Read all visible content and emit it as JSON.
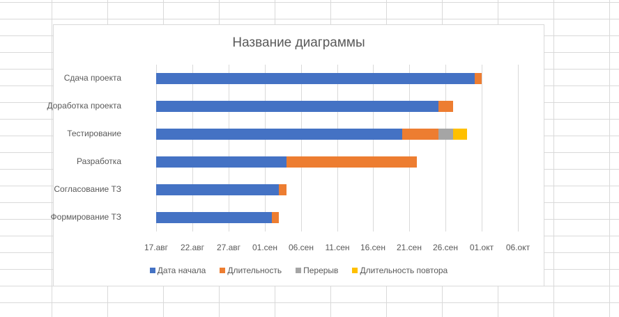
{
  "chart_data": {
    "type": "bar",
    "orientation": "horizontal",
    "stacked": true,
    "title": "Название диаграммы",
    "xlabel": "",
    "ylabel": "",
    "categories": [
      "Сдача проекта",
      "Доработка проекта",
      "Тестирование",
      "Разработка",
      "Согласование ТЗ",
      "Формирование ТЗ"
    ],
    "series": [
      {
        "name": "Дата начала",
        "color": "#4472c4",
        "values_days_from_17aug": [
          44,
          39,
          34,
          18,
          17,
          16
        ],
        "values": [
          "30.сен",
          "25.сен",
          "20.сен",
          "04.сен",
          "03.сен",
          "02.сен"
        ]
      },
      {
        "name": "Длительность",
        "color": "#ed7d31",
        "values": [
          1,
          2,
          5,
          18,
          1,
          1
        ]
      },
      {
        "name": "Перерыв",
        "color": "#a5a5a5",
        "values": [
          0,
          0,
          2,
          0,
          0,
          0
        ]
      },
      {
        "name": "Длительность повтора",
        "color": "#ffc000",
        "values": [
          0,
          0,
          2,
          0,
          0,
          0
        ]
      }
    ],
    "x_ticks": [
      "17.авг",
      "22.авг",
      "27.авг",
      "01.сен",
      "06.сен",
      "11.сен",
      "16.сен",
      "21.сен",
      "26.сен",
      "01.окт",
      "06.окт"
    ],
    "xlim": [
      "17.авг",
      "06.окт"
    ],
    "x_tick_step_days": 5,
    "grid": "vertical",
    "legend_position": "bottom"
  },
  "chart": {
    "title": "Название диаграммы",
    "categories": [
      "Сдача проекта",
      "Доработка проекта",
      "Тестирование",
      "Разработка",
      "Согласование ТЗ",
      "Формирование ТЗ"
    ],
    "ticks": [
      "17.авг",
      "22.авг",
      "27.авг",
      "01.сен",
      "06.сен",
      "11.сен",
      "16.сен",
      "21.сен",
      "26.сен",
      "01.окт",
      "06.окт"
    ],
    "legend": [
      {
        "label": "Дата начала",
        "color": "#4472c4"
      },
      {
        "label": "Длительность",
        "color": "#ed7d31"
      },
      {
        "label": "Перерыв",
        "color": "#a5a5a5"
      },
      {
        "label": "Длительность повтора",
        "color": "#ffc000"
      }
    ]
  }
}
